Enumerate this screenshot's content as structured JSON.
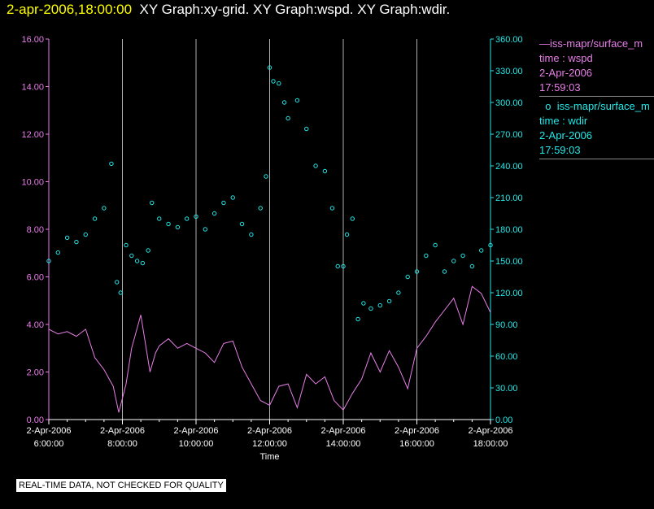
{
  "header": {
    "timestamp": "2-apr-2006,18:00:00",
    "titles": "XY Graph:xy-grid.  XY Graph:wspd.  XY Graph:wdir."
  },
  "legend": [
    {
      "symbol": "—",
      "series": "iss-mapr/surface_m",
      "name": "time : wspd",
      "date": "2-Apr-2006",
      "time": "17:59:03",
      "color": "#e87ee8"
    },
    {
      "symbol": "o",
      "series": "iss-mapr/surface_m",
      "name": "time : wdir",
      "date": "2-Apr-2006",
      "time": "17:59:03",
      "color": "#22e8e8"
    }
  ],
  "quality_note": "REAL-TIME DATA, NOT CHECKED FOR QUALITY",
  "chart_data": {
    "type": "line",
    "xlabel": "Time",
    "x_ticks": [
      [
        "2-Apr-2006",
        "6:00:00"
      ],
      [
        "2-Apr-2006",
        "8:00:00"
      ],
      [
        "2-Apr-2006",
        "10:00:00"
      ],
      [
        "2-Apr-2006",
        "12:00:00"
      ],
      [
        "2-Apr-2006",
        "14:00:00"
      ],
      [
        "2-Apr-2006",
        "16:00:00"
      ],
      [
        "2-Apr-2006",
        "18:00:00"
      ]
    ],
    "x_tick_hours": [
      6,
      8,
      10,
      12,
      14,
      16,
      18
    ],
    "xlim_hours": [
      6,
      18
    ],
    "vertical_grid": true,
    "y_left": {
      "label": "wspd",
      "ylim": [
        0,
        16
      ],
      "ticks": [
        "0.00",
        "2.00",
        "4.00",
        "6.00",
        "8.00",
        "10.00",
        "12.00",
        "14.00",
        "16.00"
      ],
      "color": "#e87ee8"
    },
    "y_right": {
      "label": "wdir",
      "ylim": [
        0,
        360
      ],
      "ticks": [
        "0.00",
        "30.00",
        "60.00",
        "90.00",
        "120.00",
        "150.00",
        "180.00",
        "210.00",
        "240.00",
        "270.00",
        "300.00",
        "330.00",
        "360.00"
      ],
      "color": "#22e8e8"
    },
    "series": [
      {
        "name": "time : wspd",
        "axis": "left",
        "style": "line",
        "color": "#e87ee8",
        "x": [
          6.0,
          6.25,
          6.5,
          6.75,
          7.0,
          7.25,
          7.5,
          7.75,
          7.9,
          8.0,
          8.1,
          8.25,
          8.5,
          8.75,
          8.9,
          9.0,
          9.25,
          9.5,
          9.75,
          10.0,
          10.25,
          10.5,
          10.75,
          11.0,
          11.25,
          11.5,
          11.75,
          12.0,
          12.25,
          12.5,
          12.75,
          13.0,
          13.25,
          13.5,
          13.75,
          14.0,
          14.25,
          14.5,
          14.75,
          15.0,
          15.25,
          15.5,
          15.75,
          16.0,
          16.25,
          16.5,
          16.75,
          17.0,
          17.25,
          17.5,
          17.75,
          18.0
        ],
        "y": [
          3.8,
          3.6,
          3.7,
          3.5,
          3.8,
          2.6,
          2.1,
          1.4,
          0.3,
          0.9,
          1.5,
          3.0,
          4.4,
          2.0,
          2.8,
          3.1,
          3.4,
          3.0,
          3.2,
          3.0,
          2.8,
          2.4,
          3.2,
          3.3,
          2.2,
          1.5,
          0.8,
          0.6,
          1.4,
          1.5,
          0.5,
          1.9,
          1.5,
          1.8,
          0.8,
          0.4,
          1.1,
          1.7,
          2.8,
          2.0,
          2.9,
          2.2,
          1.3,
          3.0,
          3.5,
          4.1,
          4.6,
          5.1,
          4.0,
          5.6,
          5.3,
          4.5
        ]
      },
      {
        "name": "time : wdir",
        "axis": "right",
        "style": "markers",
        "color": "#22e8e8",
        "x": [
          6.0,
          6.25,
          6.5,
          6.75,
          7.0,
          7.25,
          7.5,
          7.7,
          7.85,
          7.95,
          8.1,
          8.25,
          8.4,
          8.55,
          8.7,
          8.8,
          9.0,
          9.25,
          9.5,
          9.75,
          10.0,
          10.25,
          10.5,
          10.75,
          11.0,
          11.25,
          11.5,
          11.75,
          11.9,
          12.0,
          12.1,
          12.25,
          12.4,
          12.5,
          12.75,
          13.0,
          13.25,
          13.5,
          13.7,
          13.85,
          14.0,
          14.1,
          14.25,
          14.4,
          14.55,
          14.75,
          15.0,
          15.25,
          15.5,
          15.75,
          16.0,
          16.25,
          16.5,
          16.75,
          17.0,
          17.25,
          17.5,
          17.75,
          18.0
        ],
        "y": [
          150,
          158,
          172,
          168,
          175,
          190,
          200,
          242,
          130,
          120,
          165,
          155,
          150,
          148,
          160,
          205,
          190,
          185,
          182,
          190,
          192,
          180,
          195,
          205,
          210,
          185,
          175,
          200,
          230,
          333,
          320,
          318,
          300,
          285,
          302,
          275,
          240,
          235,
          200,
          145,
          145,
          175,
          190,
          95,
          110,
          105,
          108,
          112,
          120,
          135,
          140,
          155,
          165,
          140,
          150,
          155,
          145,
          160,
          165
        ]
      }
    ]
  }
}
